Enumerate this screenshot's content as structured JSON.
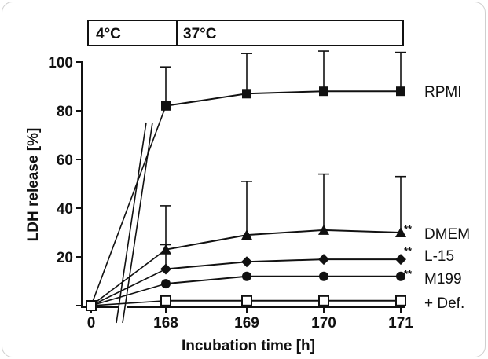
{
  "chart_data": {
    "type": "line",
    "xlabel": "Incubation time [h]",
    "ylabel": "LDH release [%]",
    "x": [
      "0",
      "168",
      "169",
      "170",
      "171"
    ],
    "x_ticks": [
      "0",
      "168",
      "169",
      "170",
      "171"
    ],
    "y_ticks": [
      "0",
      "20",
      "40",
      "60",
      "80",
      "100"
    ],
    "ylim": [
      0,
      100
    ],
    "axis_break": true,
    "temperature_bar": [
      "4°C",
      "37°C"
    ],
    "series": [
      {
        "name": "RPMI",
        "marker": "square-filled",
        "values": [
          0,
          82,
          87,
          88,
          88
        ],
        "error": [
          null,
          16,
          16.5,
          16.5,
          16
        ],
        "significance": ""
      },
      {
        "name": "DMEM",
        "marker": "triangle-filled",
        "values": [
          0,
          23,
          29,
          31,
          30
        ],
        "error": [
          null,
          18,
          22,
          23,
          23
        ],
        "significance": "**"
      },
      {
        "name": "L-15",
        "marker": "diamond-filled",
        "values": [
          0,
          15,
          18,
          19,
          19
        ],
        "error": [
          null,
          10,
          null,
          null,
          null
        ],
        "significance": "**"
      },
      {
        "name": "M199",
        "marker": "circle-filled",
        "values": [
          0,
          9,
          12,
          12,
          12
        ],
        "error": [
          null,
          null,
          null,
          null,
          null
        ],
        "significance": "**"
      },
      {
        "name": "+ Def.",
        "marker": "square-open",
        "values": [
          0,
          2,
          2,
          2,
          2
        ],
        "error": [
          null,
          null,
          null,
          null,
          null
        ],
        "significance": ""
      }
    ],
    "colors": {
      "ink": "#111111",
      "frame": "#cfcfcf"
    }
  }
}
